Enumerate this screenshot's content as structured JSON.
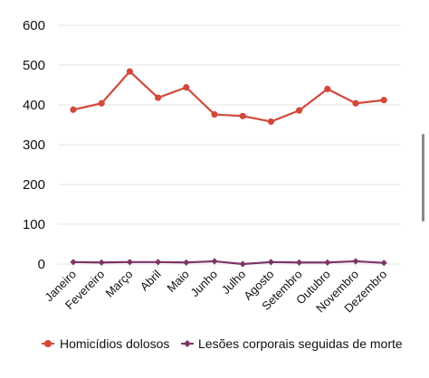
{
  "chart_data": {
    "type": "line",
    "title": "",
    "xlabel": "",
    "ylabel": "",
    "ylim": [
      0,
      600
    ],
    "yticks": [
      0,
      100,
      200,
      300,
      400,
      500,
      600
    ],
    "grid": true,
    "legend_position": "bottom",
    "categories": [
      "Janeiro",
      "Fevereiro",
      "Março",
      "Abril",
      "Maio",
      "Junho",
      "Julho",
      "Agosto",
      "Setembro",
      "Outubro",
      "Novembro",
      "Dezembro"
    ],
    "series": [
      {
        "name": "Homicídios dolosos",
        "color": "#d2493c",
        "marker": "circle",
        "values": [
          388,
          404,
          484,
          418,
          444,
          376,
          372,
          358,
          386,
          440,
          404,
          412
        ]
      },
      {
        "name": "Lesões corporais seguidas de morte",
        "color": "#7d3466",
        "marker": "diamond",
        "values": [
          5,
          4,
          5,
          5,
          4,
          7,
          0,
          5,
          4,
          4,
          7,
          3
        ]
      }
    ]
  },
  "colors": {
    "grid": "#e6e6e6",
    "axis_text": "#111111",
    "scrollbar": "#8a8a8a"
  }
}
